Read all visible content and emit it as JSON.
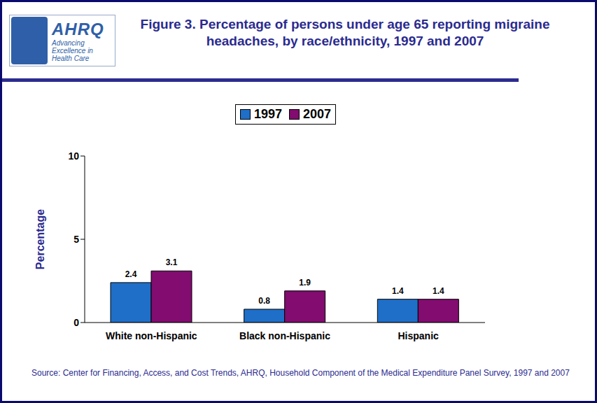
{
  "chart_data": {
    "type": "bar",
    "title": "Figure 3. Percentage of persons under age 65 reporting migraine headaches, by race/ethnicity, 1997 and 2007",
    "logo_text": [
      "AHRQ",
      "Advancing Excellence in Health Care"
    ],
    "y_label": "Percentage",
    "source": "Source: Center for Financing, Access, and Cost Trends, AHRQ, Household Component of the Medical Expenditure Panel Survey, 1997 and 2007",
    "categories": [
      "White non-Hispanic",
      "Black non-Hispanic",
      "Hispanic"
    ],
    "series": [
      {
        "name": "1997",
        "color": "#1f6fc8",
        "values": [
          2.4,
          0.8,
          1.4
        ]
      },
      {
        "name": "2007",
        "color": "#820c6f",
        "values": [
          3.1,
          1.9,
          1.4
        ]
      }
    ],
    "ylim": [
      0,
      10
    ],
    "yticks": [
      0,
      5,
      10
    ],
    "grid": false,
    "legend": "top",
    "data_labels": true
  }
}
